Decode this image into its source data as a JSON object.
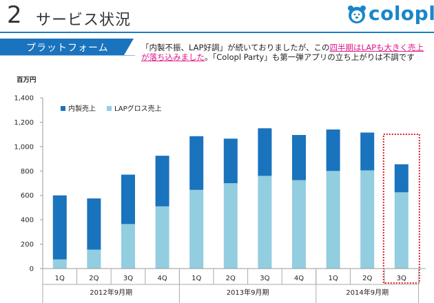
{
  "header": {
    "slide_number": "2",
    "title": "サービス状況",
    "logo_text": "colopl"
  },
  "section": {
    "label": "プラットフォーム"
  },
  "comment": {
    "part1": "「内製不振、LAP好調」が続いておりましたが、この",
    "highlight": "四半期はLAPも大きく売上が落ち込みました",
    "part2": "。「Colopl Party」も第一弾アプリの立ち上がりは不調です"
  },
  "unit": "百万円",
  "chart_data": {
    "type": "bar",
    "stacked": true,
    "categories": [
      "1Q",
      "2Q",
      "3Q",
      "4Q",
      "1Q",
      "2Q",
      "3Q",
      "4Q",
      "1Q",
      "2Q",
      "3Q"
    ],
    "groups": [
      {
        "label": "2012年9月期",
        "count": 4
      },
      {
        "label": "2013年9月期",
        "count": 4
      },
      {
        "label": "2014年9月期",
        "count": 3
      }
    ],
    "series": [
      {
        "name": "LAPグロス売上",
        "color": "#93cde0",
        "values": [
          75,
          155,
          365,
          510,
          645,
          700,
          760,
          725,
          800,
          805,
          625
        ]
      },
      {
        "name": "内製売上",
        "color": "#1a73bd",
        "values": [
          525,
          420,
          405,
          415,
          440,
          365,
          390,
          370,
          340,
          310,
          230
        ]
      }
    ],
    "legend": [
      "内製売上",
      "LAPグロス売上"
    ],
    "legend_position": "top-left",
    "yticks": [
      "0",
      "200",
      "400",
      "600",
      "800",
      "1,000",
      "1,200",
      "1,400"
    ],
    "ylim": [
      0,
      1400
    ],
    "highlighted_category_index": 10,
    "highlight_color": "#d91f26"
  }
}
